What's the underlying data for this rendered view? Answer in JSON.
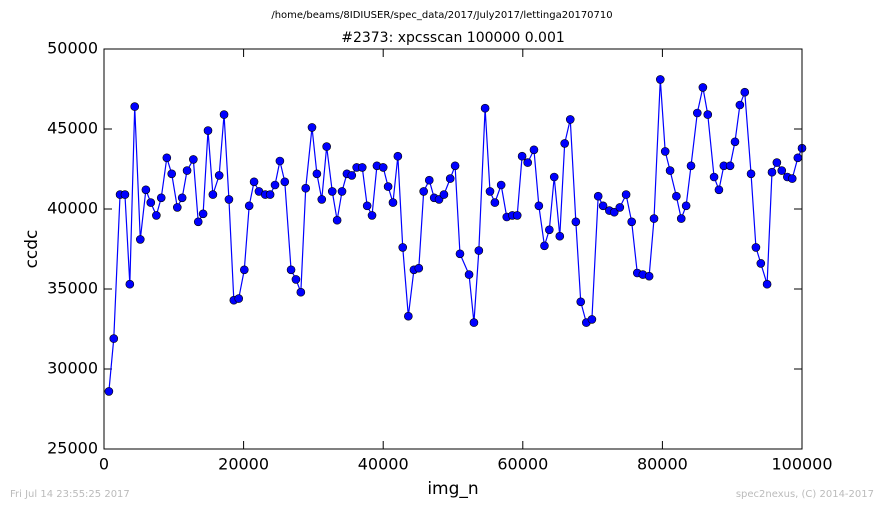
{
  "chart_data": {
    "type": "line",
    "suptitle": "/home/beams/8IDIUSER/spec_data/2017/July2017/lettinga20170710",
    "title": "#2373: xpcsscan 100000 0.001",
    "x_label": "img_n",
    "y_label": "ccdc",
    "footer_left": "Fri Jul 14 23:55:25 2017",
    "footer_right": "spec2nexus, (C) 2014-2017",
    "color": "#0000ff",
    "marker": true,
    "xlim": [
      0,
      100000
    ],
    "xticks": [
      0,
      20000,
      40000,
      60000,
      80000,
      100000
    ],
    "ylim": [
      25000,
      50000
    ],
    "yticks": [
      25000,
      30000,
      35000,
      40000,
      45000,
      50000
    ],
    "x": [
      700,
      1400,
      2300,
      3000,
      3700,
      4400,
      5200,
      6000,
      6700,
      7500,
      8200,
      9000,
      9700,
      10500,
      11200,
      11900,
      12800,
      13500,
      14200,
      14900,
      15600,
      16500,
      17200,
      17900,
      18600,
      19300,
      20100,
      20800,
      21500,
      22200,
      23100,
      23800,
      24500,
      25200,
      25900,
      26800,
      27500,
      28200,
      28900,
      29800,
      30500,
      31200,
      31900,
      32700,
      33400,
      34100,
      34800,
      35500,
      36200,
      37000,
      37700,
      38400,
      39100,
      40000,
      40700,
      41400,
      42100,
      42800,
      43600,
      44400,
      45100,
      45800,
      46600,
      47300,
      48000,
      48700,
      49600,
      50300,
      51000,
      52300,
      53000,
      53700,
      54600,
      55300,
      56000,
      56900,
      57700,
      58500,
      59200,
      59900,
      60700,
      61600,
      62300,
      63100,
      63800,
      64500,
      65300,
      66000,
      66800,
      67600,
      68300,
      69100,
      69900,
      70800,
      71500,
      72400,
      73100,
      73900,
      74800,
      75600,
      76400,
      77200,
      78100,
      78800,
      79700,
      80400,
      81100,
      82000,
      82700,
      83400,
      84100,
      85000,
      85800,
      86500,
      87400,
      88100,
      88800,
      89700,
      90400,
      91100,
      91800,
      92700,
      93400,
      94100,
      95000,
      95700,
      96400,
      97100,
      97900,
      98600,
      99400,
      100000
    ],
    "values": [
      28600,
      31900,
      40900,
      40900,
      35300,
      46400,
      38100,
      41200,
      40400,
      39600,
      40700,
      43200,
      42200,
      40100,
      40700,
      42400,
      43100,
      39200,
      39700,
      44900,
      40900,
      42100,
      45900,
      40600,
      34300,
      34400,
      36200,
      40200,
      41700,
      41100,
      40900,
      40900,
      41500,
      43000,
      41700,
      36200,
      35600,
      34800,
      41300,
      45100,
      42200,
      40600,
      43900,
      41100,
      39300,
      41100,
      42200,
      42100,
      42600,
      42600,
      40200,
      39600,
      42700,
      42600,
      41400,
      40400,
      43300,
      37600,
      33300,
      36200,
      36300,
      41100,
      41800,
      40700,
      40600,
      40900,
      41900,
      42700,
      37200,
      35900,
      32900,
      37400,
      46300,
      41100,
      40400,
      41500,
      39500,
      39600,
      39600,
      43300,
      42900,
      43700,
      40200,
      37700,
      38700,
      42000,
      38300,
      44100,
      45600,
      39200,
      34200,
      32900,
      33100,
      40800,
      40200,
      39900,
      39800,
      40100,
      40900,
      39200,
      36000,
      35900,
      35800,
      39400,
      48100,
      43600,
      42400,
      40800,
      39400,
      40200,
      42700,
      46000,
      47600,
      45900,
      42000,
      41200,
      42700,
      42700,
      44200,
      46500,
      47300,
      42200,
      37600,
      36600,
      35300,
      42300,
      42900,
      42400,
      42000,
      41900,
      43200,
      43800
    ]
  }
}
